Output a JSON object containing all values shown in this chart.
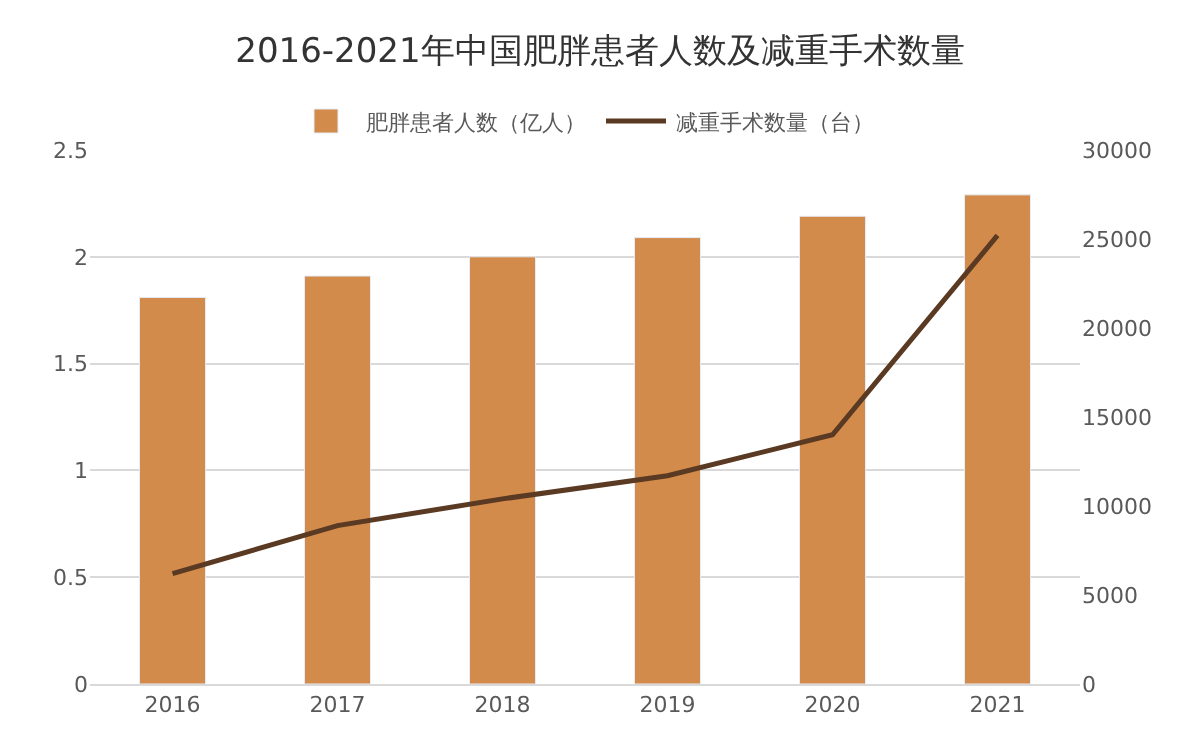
{
  "chart_data": {
    "type": "bar",
    "title": "2016-2021年中国肥胖患者人数及减重手术数量",
    "categories": [
      "2016",
      "2017",
      "2018",
      "2019",
      "2020",
      "2021"
    ],
    "series": [
      {
        "name": "肥胖患者人数（亿人）",
        "color": "#d38b4c",
        "values": [
          1.81,
          1.91,
          2.0,
          2.09,
          2.19,
          2.29
        ]
      },
      {
        "name": "减重手术数量（台）",
        "color": "#5a3a22",
        "type": "line",
        "axis": "y2",
        "values": [
          6200,
          8900,
          10400,
          11700,
          14000,
          25200
        ]
      }
    ],
    "ylim": [
      0,
      2.5
    ],
    "yticks": [
      0,
      {
        "value": 0.5,
        "label": "0.5"
      },
      1,
      {
        "value": 1.5,
        "label": "1.5"
      },
      2,
      {
        "value": 2.5,
        "label": "2.5"
      }
    ],
    "y2lim": [
      0,
      30000
    ],
    "y2ticks": [
      0,
      5000,
      10000,
      15000,
      20000,
      25000,
      30000
    ],
    "grid": "y",
    "legend": "top",
    "marker": "none",
    "line_style": "solid"
  }
}
